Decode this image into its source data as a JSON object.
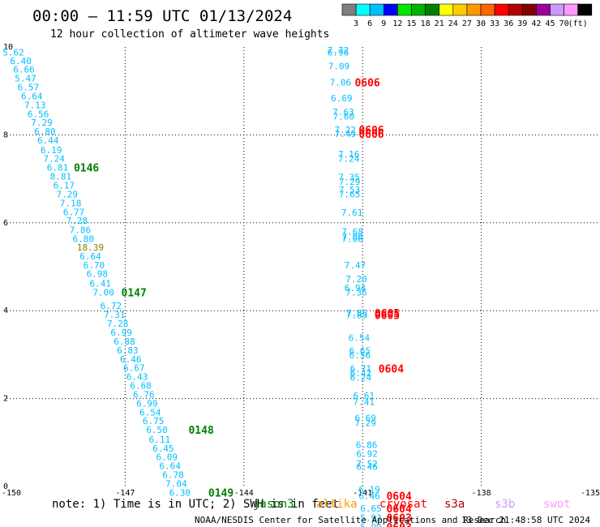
{
  "header": {
    "title": "00:00 – 11:59 UTC 01/13/2024",
    "subtitle": "12 hour collection of altimeter wave heights"
  },
  "colorbar": {
    "colors": [
      "#7f7f7f",
      "#00ffff",
      "#00bfff",
      "#0000ff",
      "#00e600",
      "#00b300",
      "#008000",
      "#ffff00",
      "#ffcc00",
      "#ff9900",
      "#ff6600",
      "#ff0000",
      "#b30000",
      "#800000",
      "#990099",
      "#cc99ff",
      "#ff99ff",
      "#000000"
    ],
    "labels": [
      "3",
      "6",
      "9",
      "12",
      "15",
      "18",
      "21",
      "24",
      "27",
      "30",
      "33",
      "36",
      "39",
      "42",
      "45",
      "70",
      "(ft)"
    ]
  },
  "footer": {
    "note": "note: 1) Time is in UTC; 2) SWH is in feet",
    "credit": "NOAA/NESDIS Center for Satellite Applications and Research",
    "timestamp": "13 Dec 21:48:58 UTC 2024"
  },
  "satellites": [
    {
      "name": "jason3",
      "color": "#008000"
    },
    {
      "name": "altika",
      "color": "#ff9900"
    },
    {
      "name": "cryosat",
      "color": "#ff0000"
    },
    {
      "name": "s3a",
      "color": "#b30000"
    },
    {
      "name": "s3b",
      "color": "#cc99ff"
    },
    {
      "name": "swot",
      "color": "#ff99ff"
    }
  ],
  "chart_data": {
    "type": "scatter",
    "xlim": [
      -150,
      -135
    ],
    "ylim": [
      0,
      10
    ],
    "x_ticks": [
      "-150",
      "-147",
      "-144",
      "-141",
      "-138",
      "-135"
    ],
    "y_ticks": [
      "0",
      "2",
      "4",
      "6",
      "8",
      "10"
    ],
    "grid": true,
    "series": [
      {
        "name": "jason3",
        "color": "#00bfff",
        "points": [
          {
            "x": -150.1,
            "y": 9.88,
            "label": "5.62"
          },
          {
            "x": -149.91,
            "y": 9.69,
            "label": "6.40"
          },
          {
            "x": -149.83,
            "y": 9.49,
            "label": "6.66"
          },
          {
            "x": -149.79,
            "y": 9.29,
            "label": "5.47"
          },
          {
            "x": -149.72,
            "y": 9.09,
            "label": "6.57"
          },
          {
            "x": -149.63,
            "y": 8.88,
            "label": "6.64"
          },
          {
            "x": -149.55,
            "y": 8.68,
            "label": "7.13"
          },
          {
            "x": -149.47,
            "y": 8.48,
            "label": "6.56"
          },
          {
            "x": -149.38,
            "y": 8.28,
            "label": "7.29"
          },
          {
            "x": -149.3,
            "y": 8.08,
            "label": "6.80"
          },
          {
            "x": -149.22,
            "y": 7.88,
            "label": "6.44"
          },
          {
            "x": -149.14,
            "y": 7.66,
            "label": "6.19"
          },
          {
            "x": -149.07,
            "y": 7.46,
            "label": "7.24"
          },
          {
            "x": -148.98,
            "y": 7.26,
            "label": "6.81"
          },
          {
            "x": -148.9,
            "y": 7.06,
            "label": "8.81"
          },
          {
            "x": -148.82,
            "y": 6.85,
            "label": "6.17"
          },
          {
            "x": -148.74,
            "y": 6.65,
            "label": "7.29"
          },
          {
            "x": -148.65,
            "y": 6.45,
            "label": "7.18"
          },
          {
            "x": -148.57,
            "y": 6.25,
            "label": "6.77"
          },
          {
            "x": -148.49,
            "y": 6.05,
            "label": "7.28"
          },
          {
            "x": -148.41,
            "y": 5.84,
            "label": "7.86"
          },
          {
            "x": -148.33,
            "y": 5.64,
            "label": "6.80"
          },
          {
            "x": -148.22,
            "y": 5.44,
            "label": "18.39",
            "color": "#808000"
          },
          {
            "x": -148.15,
            "y": 5.24,
            "label": "6.64"
          },
          {
            "x": -148.06,
            "y": 5.04,
            "label": "6.70"
          },
          {
            "x": -147.98,
            "y": 4.84,
            "label": "6.98"
          },
          {
            "x": -147.9,
            "y": 4.62,
            "label": "6.41"
          },
          {
            "x": -147.82,
            "y": 4.42,
            "label": "7.00"
          },
          {
            "x": -147.63,
            "y": 4.11,
            "label": "6.72"
          },
          {
            "x": -147.54,
            "y": 3.91,
            "label": "7.31"
          },
          {
            "x": -147.46,
            "y": 3.71,
            "label": "7.28"
          },
          {
            "x": -147.37,
            "y": 3.51,
            "label": "6.99"
          },
          {
            "x": -147.29,
            "y": 3.3,
            "label": "6.88"
          },
          {
            "x": -147.21,
            "y": 3.1,
            "label": "6.83"
          },
          {
            "x": -147.13,
            "y": 2.9,
            "label": "6.46"
          },
          {
            "x": -147.05,
            "y": 2.7,
            "label": "6.67"
          },
          {
            "x": -146.97,
            "y": 2.5,
            "label": "6.43"
          },
          {
            "x": -146.88,
            "y": 2.3,
            "label": "6.68"
          },
          {
            "x": -146.8,
            "y": 2.09,
            "label": "6.76"
          },
          {
            "x": -146.72,
            "y": 1.89,
            "label": "6.99"
          },
          {
            "x": -146.64,
            "y": 1.69,
            "label": "6.54"
          },
          {
            "x": -146.56,
            "y": 1.49,
            "label": "6.75"
          },
          {
            "x": -146.47,
            "y": 1.29,
            "label": "6.50"
          },
          {
            "x": -146.4,
            "y": 1.07,
            "label": "6.11"
          },
          {
            "x": -146.31,
            "y": 0.87,
            "label": "6.45"
          },
          {
            "x": -146.22,
            "y": 0.67,
            "label": "6.09"
          },
          {
            "x": -146.14,
            "y": 0.47,
            "label": "6.64"
          },
          {
            "x": -146.06,
            "y": 0.27,
            "label": "6.78"
          },
          {
            "x": -145.98,
            "y": 0.06,
            "label": "7.04"
          },
          {
            "x": -145.89,
            "y": -0.14,
            "label": "6.30"
          },
          {
            "x": -141.89,
            "y": 9.93,
            "label": "7.72"
          },
          {
            "x": -141.89,
            "y": 9.88,
            "label": "6.96"
          },
          {
            "x": -141.87,
            "y": 9.57,
            "label": "7.09"
          },
          {
            "x": -141.83,
            "y": 9.2,
            "label": "7.06"
          },
          {
            "x": -141.8,
            "y": 8.84,
            "label": "6.69"
          },
          {
            "x": -141.76,
            "y": 8.52,
            "label": "7.63"
          },
          {
            "x": -141.75,
            "y": 8.42,
            "label": "7.60"
          },
          {
            "x": -141.71,
            "y": 8.12,
            "label": "7.22"
          },
          {
            "x": -141.71,
            "y": 8.03,
            "label": "7.49"
          },
          {
            "x": -141.62,
            "y": 7.56,
            "label": "7.16"
          },
          {
            "x": -141.62,
            "y": 7.46,
            "label": "7.24"
          },
          {
            "x": -141.61,
            "y": 7.04,
            "label": "7.35"
          },
          {
            "x": -141.6,
            "y": 6.94,
            "label": "7.29"
          },
          {
            "x": -141.6,
            "y": 6.75,
            "label": "7.53"
          },
          {
            "x": -141.6,
            "y": 6.65,
            "label": "7.65"
          },
          {
            "x": -141.54,
            "y": 6.24,
            "label": "7.61"
          },
          {
            "x": -141.53,
            "y": 5.8,
            "label": "7.68"
          },
          {
            "x": -141.53,
            "y": 5.69,
            "label": "7.06"
          },
          {
            "x": -141.53,
            "y": 5.64,
            "label": "7.06"
          },
          {
            "x": -141.46,
            "y": 5.04,
            "label": "7.47"
          },
          {
            "x": -141.43,
            "y": 4.72,
            "label": "7.20"
          },
          {
            "x": -141.46,
            "y": 4.52,
            "label": "6.94"
          },
          {
            "x": -141.43,
            "y": 4.42,
            "label": "7.36"
          },
          {
            "x": -141.42,
            "y": 3.95,
            "label": "7.85"
          },
          {
            "x": -141.42,
            "y": 3.9,
            "label": "7.85"
          },
          {
            "x": -141.36,
            "y": 3.39,
            "label": "6.54"
          },
          {
            "x": -141.34,
            "y": 3.09,
            "label": "6.65"
          },
          {
            "x": -141.34,
            "y": 2.99,
            "label": "6.56"
          },
          {
            "x": -141.32,
            "y": 2.68,
            "label": "6.71"
          },
          {
            "x": -141.32,
            "y": 2.58,
            "label": "6.42"
          },
          {
            "x": -141.32,
            "y": 2.48,
            "label": "6.24"
          },
          {
            "x": -141.24,
            "y": 2.07,
            "label": "6.61"
          },
          {
            "x": -141.24,
            "y": 1.93,
            "label": "7.41"
          },
          {
            "x": -141.2,
            "y": 1.56,
            "label": "6.69"
          },
          {
            "x": -141.2,
            "y": 1.45,
            "label": "7.29"
          },
          {
            "x": -141.17,
            "y": 0.95,
            "label": "6.86"
          },
          {
            "x": -141.16,
            "y": 0.75,
            "label": "6.92"
          },
          {
            "x": -141.16,
            "y": 0.52,
            "label": "7.52"
          },
          {
            "x": -141.16,
            "y": 0.45,
            "label": "6.46"
          },
          {
            "x": -141.1,
            "y": -0.06,
            "label": "6.19"
          },
          {
            "x": -141.1,
            "y": -0.21,
            "label": "6.46"
          },
          {
            "x": -141.06,
            "y": -0.5,
            "label": "6.65"
          },
          {
            "x": -141.06,
            "y": -0.71,
            "label": "5.93"
          },
          {
            "x": -141.06,
            "y": -0.92,
            "label": "5.99"
          }
        ]
      }
    ],
    "annotations": [
      {
        "text": "0146",
        "x": -148.3,
        "y": 7.26,
        "color": "#008000"
      },
      {
        "text": "0147",
        "x": -147.1,
        "y": 4.42,
        "color": "#008000"
      },
      {
        "text": "0148",
        "x": -145.4,
        "y": 1.29,
        "color": "#008000"
      },
      {
        "text": "0149",
        "x": -144.9,
        "y": -0.14,
        "color": "#008000"
      },
      {
        "text": "0606",
        "x": -141.2,
        "y": 9.2,
        "color": "#ff0000"
      },
      {
        "text": "0606",
        "x": -141.1,
        "y": 8.12,
        "color": "#ff0000"
      },
      {
        "text": "0606",
        "x": -141.1,
        "y": 8.03,
        "color": "#ff0000"
      },
      {
        "text": "0605",
        "x": -140.7,
        "y": 3.95,
        "color": "#ff0000"
      },
      {
        "text": "0605",
        "x": -140.7,
        "y": 3.9,
        "color": "#ff0000"
      },
      {
        "text": "0604",
        "x": -140.6,
        "y": 2.68,
        "color": "#ff0000"
      },
      {
        "text": "0604",
        "x": -140.4,
        "y": -0.21,
        "color": "#ff0000"
      },
      {
        "text": "0604",
        "x": -140.4,
        "y": -0.5,
        "color": "#ff0000"
      },
      {
        "text": "0603",
        "x": -140.4,
        "y": -0.71,
        "color": "#ff0000"
      },
      {
        "text": "0603",
        "x": -140.4,
        "y": -0.92,
        "color": "#ff0000"
      }
    ]
  }
}
